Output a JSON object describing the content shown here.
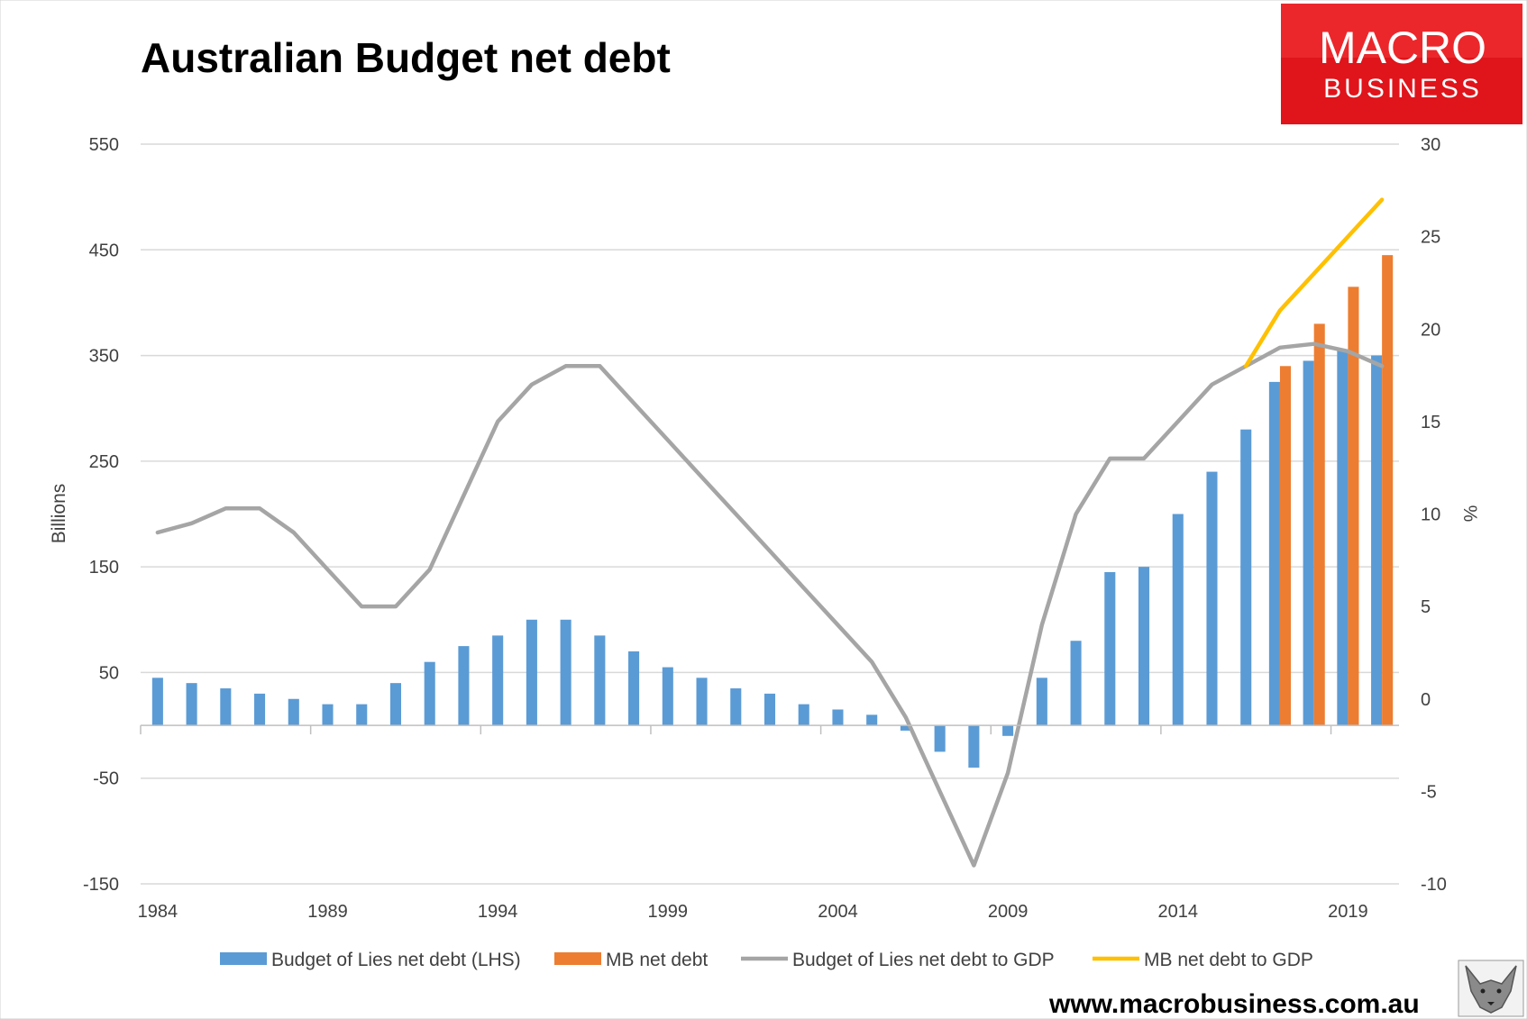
{
  "brand": {
    "logo_line1": "MACRO",
    "logo_line2": "BUSINESS",
    "logo_color": "#e0141b",
    "url": "www.macrobusiness.com.au"
  },
  "chart_data": {
    "type": "bar",
    "title": "Australian Budget net debt",
    "ylabel": "Billions",
    "y2label": "%",
    "ylim": [
      -150,
      550
    ],
    "y_ticks": [
      550,
      450,
      350,
      250,
      150,
      50,
      -50,
      -150
    ],
    "y2lim": [
      -10,
      30
    ],
    "y2_ticks": [
      30,
      25,
      20,
      15,
      10,
      5,
      0,
      -5,
      -10
    ],
    "x": [
      1984,
      1985,
      1986,
      1987,
      1988,
      1989,
      1990,
      1991,
      1992,
      1993,
      1994,
      1995,
      1996,
      1997,
      1998,
      1999,
      2000,
      2001,
      2002,
      2003,
      2004,
      2005,
      2006,
      2007,
      2008,
      2009,
      2010,
      2011,
      2012,
      2013,
      2014,
      2015,
      2016,
      2017,
      2018,
      2019,
      2020
    ],
    "x_tick_labels": [
      "1984",
      "1989",
      "1994",
      "1999",
      "2004",
      "2009",
      "2014",
      "2019"
    ],
    "legend_position": "bottom",
    "series": [
      {
        "name": "Budget of Lies net debt (LHS)",
        "kind": "bar",
        "axis": "left",
        "color": "#5b9bd5",
        "values": [
          45,
          40,
          35,
          30,
          25,
          20,
          20,
          40,
          60,
          75,
          85,
          100,
          100,
          85,
          70,
          55,
          45,
          35,
          30,
          20,
          15,
          10,
          -5,
          -25,
          -40,
          -10,
          45,
          80,
          145,
          150,
          200,
          240,
          280,
          325,
          345,
          355,
          350
        ]
      },
      {
        "name": "MB net debt",
        "kind": "bar",
        "axis": "left",
        "color": "#ed7d31",
        "values": [
          null,
          null,
          null,
          null,
          null,
          null,
          null,
          null,
          null,
          null,
          null,
          null,
          null,
          null,
          null,
          null,
          null,
          null,
          null,
          null,
          null,
          null,
          null,
          null,
          null,
          null,
          null,
          null,
          null,
          null,
          null,
          null,
          null,
          340,
          380,
          415,
          445
        ]
      },
      {
        "name": "Budget of Lies net debt to GDP",
        "kind": "line",
        "axis": "right",
        "color": "#a5a5a5",
        "values": [
          9,
          9.5,
          10.3,
          10.3,
          9,
          7,
          5,
          5,
          7,
          11,
          15,
          17,
          18,
          18,
          16,
          14,
          12,
          10,
          8,
          6,
          4,
          2,
          -1,
          -5,
          -9,
          -4,
          4,
          10,
          13,
          13,
          15,
          17,
          18,
          19,
          19.2,
          18.8,
          18
        ]
      },
      {
        "name": "MB net debt to GDP",
        "kind": "line",
        "axis": "right",
        "color": "#ffc000",
        "values": [
          null,
          null,
          null,
          null,
          null,
          null,
          null,
          null,
          null,
          null,
          null,
          null,
          null,
          null,
          null,
          null,
          null,
          null,
          null,
          null,
          null,
          null,
          null,
          null,
          null,
          null,
          null,
          null,
          null,
          null,
          null,
          null,
          18,
          21,
          23,
          25,
          27
        ]
      }
    ]
  }
}
